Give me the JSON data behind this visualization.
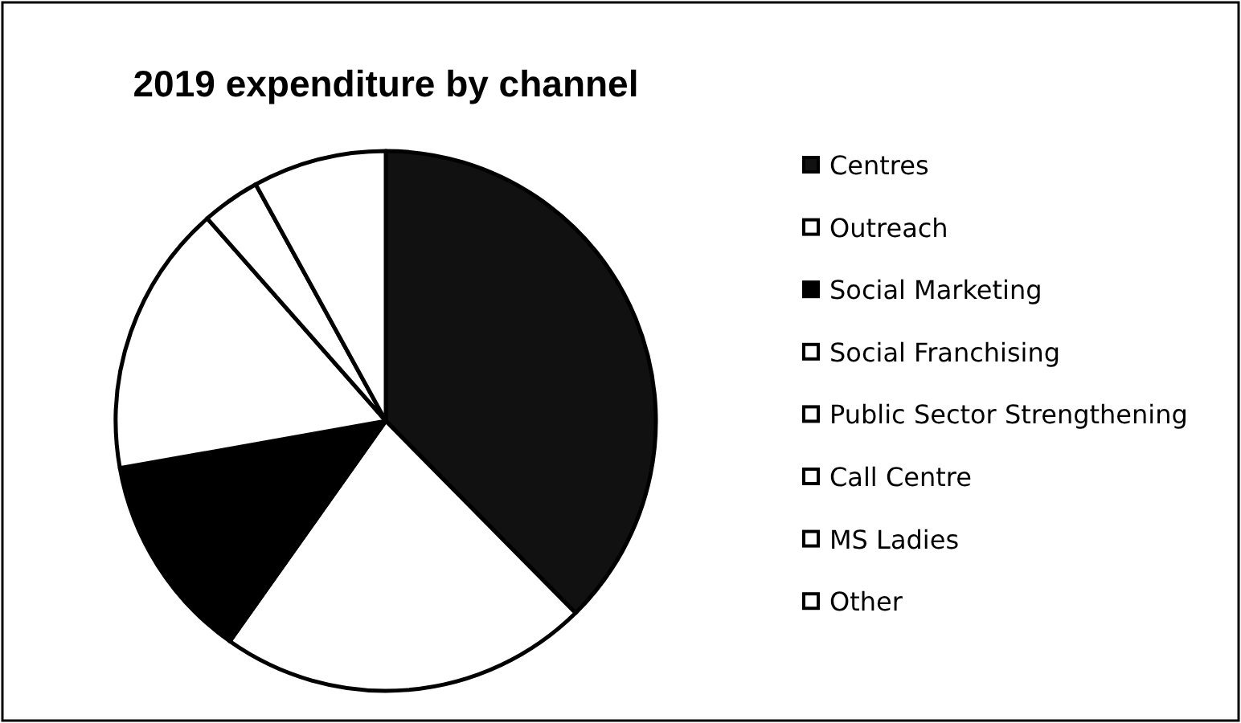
{
  "chart_data": {
    "type": "pie",
    "title": "2019 expenditure by channel",
    "categories": [
      "Centres",
      "Outreach",
      "Social Marketing",
      "Social Franchising",
      "Public Sector Strengthening",
      "Call Centre",
      "MS Ladies",
      "Other"
    ],
    "values": [
      37.6,
      22.2,
      12.4,
      16.3,
      3.5,
      null,
      null,
      8.0
    ],
    "colors": [
      "#111111",
      "#ffffff",
      "#000000",
      "#ffffff",
      "#ffffff",
      "#ffffff",
      "#ffffff",
      "#ffffff"
    ],
    "legend": "right"
  }
}
